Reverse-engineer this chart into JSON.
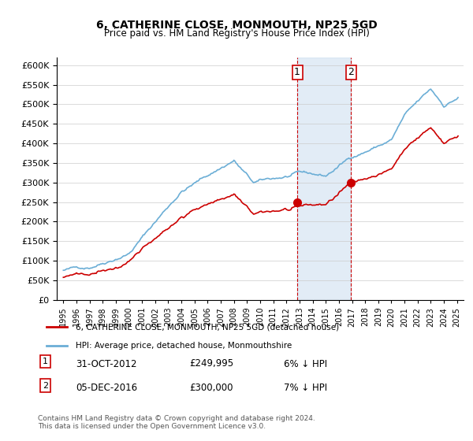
{
  "title": "6, CATHERINE CLOSE, MONMOUTH, NP25 5GD",
  "subtitle": "Price paid vs. HM Land Registry's House Price Index (HPI)",
  "legend_label1": "6, CATHERINE CLOSE, MONMOUTH, NP25 5GD (detached house)",
  "legend_label2": "HPI: Average price, detached house, Monmouthshire",
  "annotation1_label": "1",
  "annotation1_date": "31-OCT-2012",
  "annotation1_price": "£249,995",
  "annotation1_hpi": "6% ↓ HPI",
  "annotation2_label": "2",
  "annotation2_date": "05-DEC-2016",
  "annotation2_price": "£300,000",
  "annotation2_hpi": "7% ↓ HPI",
  "footer": "Contains HM Land Registry data © Crown copyright and database right 2024.\nThis data is licensed under the Open Government Licence v3.0.",
  "sale1_x": 2012.83,
  "sale1_y": 249995,
  "sale2_x": 2016.92,
  "sale2_y": 300000,
  "vline1_x": 2012.83,
  "vline2_x": 2016.92,
  "hpi_color": "#6baed6",
  "price_color": "#cc0000",
  "sale_dot_color": "#cc0000",
  "vline_color": "#cc0000",
  "shading_color": "#c6dbef",
  "ylim": [
    0,
    620000
  ],
  "xlim": [
    1994.5,
    2025.5
  ]
}
